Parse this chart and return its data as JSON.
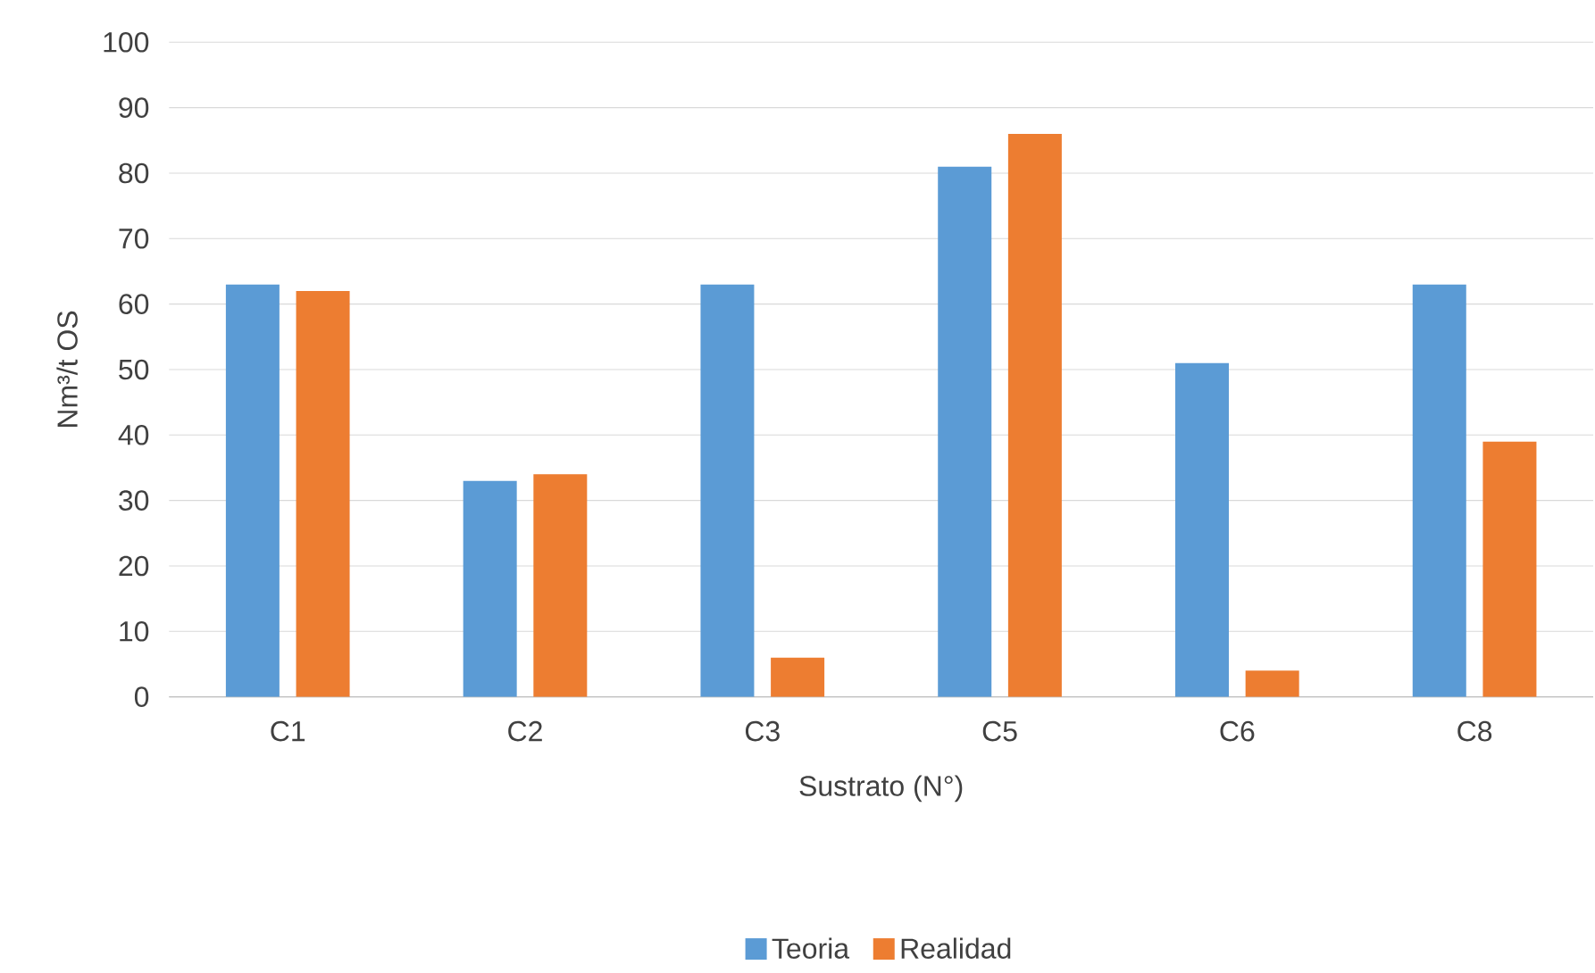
{
  "chart_data": {
    "type": "bar",
    "xlabel": "Sustrato (N°)",
    "ylabel": "Nm³/t OS",
    "categories": [
      "C1",
      "C2",
      "C3",
      "C5",
      "C6",
      "C8"
    ],
    "series": [
      {
        "name": "Teoria",
        "color": "#5b9bd5",
        "values": [
          63,
          33,
          63,
          81,
          51,
          63
        ]
      },
      {
        "name": "Realidad",
        "color": "#ed7d31",
        "values": [
          62,
          34,
          6,
          86,
          4,
          39
        ]
      }
    ],
    "ylim": [
      0,
      100
    ],
    "yticks": [
      0,
      10,
      20,
      30,
      40,
      50,
      60,
      70,
      80,
      90,
      100
    ],
    "grid": "y",
    "legend": "bottom"
  }
}
